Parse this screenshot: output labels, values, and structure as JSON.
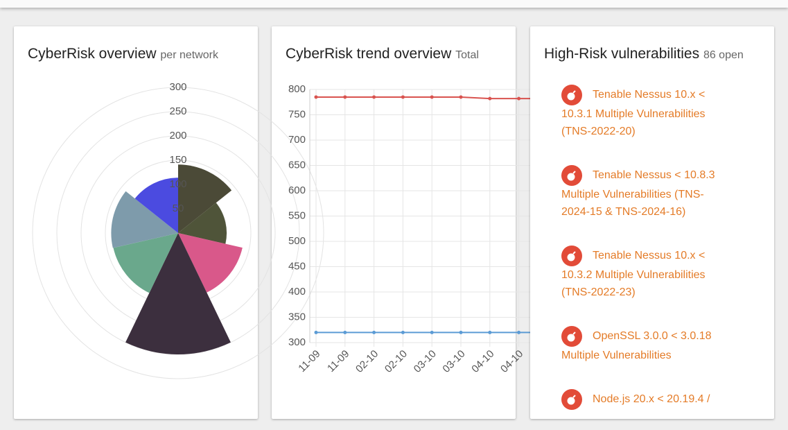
{
  "cards": [
    {
      "title": "CyberRisk overview",
      "subtitle": "per network",
      "chart_data": {
        "type": "polarArea",
        "values": [
          141,
          100,
          136,
          250,
          137,
          138,
          114
        ],
        "colors": [
          "#4b4a37",
          "#4f5439",
          "#d9588a",
          "#3c2f3e",
          "#6aa88c",
          "#7e9bab",
          "#4b4be0"
        ],
        "rlim": [
          0,
          300
        ],
        "rticks": [
          50,
          100,
          150,
          200,
          250,
          300
        ],
        "grid": true
      }
    },
    {
      "title": "CyberRisk trend overview",
      "subtitle": "Total",
      "chart_data": {
        "type": "line",
        "categories": [
          "11-09",
          "11-09",
          "02-10",
          "02-10",
          "03-10",
          "03-10",
          "04-10",
          "04-10",
          null
        ],
        "series": [
          {
            "color": "#d9534f",
            "values": [
              785,
              785,
              785,
              785,
              785,
              785,
              782,
              782,
              782
            ]
          },
          {
            "color": "#5b9bd5",
            "values": [
              320,
              320,
              320,
              320,
              320,
              320,
              320,
              320,
              320
            ]
          }
        ],
        "ylim": [
          300,
          800
        ],
        "yticks": [
          300,
          350,
          400,
          450,
          500,
          550,
          600,
          650,
          700,
          750,
          800
        ],
        "grid": true
      }
    },
    {
      "title": "High-Risk vulnerabilities",
      "subtitle": "86 open",
      "items": [
        "Tenable Nessus 10.x < 10.3.1 Multiple Vulnerabilities (TNS-2022-20)",
        "Tenable Nessus < 10.8.3 Multiple Vulnerabilities (TNS-2024-15 & TNS-2024-16)",
        "Tenable Nessus 10.x < 10.3.2 Multiple Vulnerabilities (TNS-2022-23)",
        "OpenSSL 3.0.0 < 3.0.18 Multiple Vulnerabilities",
        "Node.js 20.x < 20.19.4 /"
      ]
    }
  ]
}
